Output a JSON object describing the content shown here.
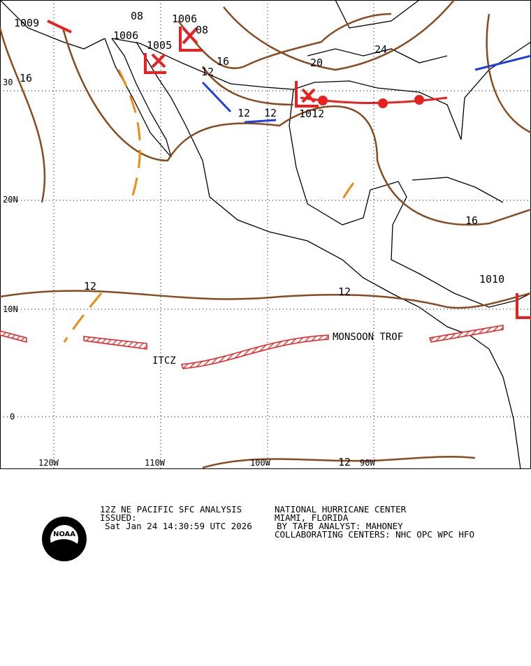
{
  "map": {
    "lat_labels": [
      "30",
      "20N",
      "10N",
      "0"
    ],
    "lon_labels": [
      "120W",
      "110W",
      "100W",
      "90W"
    ],
    "isobar_labels": [
      "1009",
      "08",
      "1006",
      "1006",
      "1005",
      "08",
      "16",
      "12",
      "16",
      "20",
      "24",
      "12",
      "12",
      "1012",
      "16",
      "12",
      "1010",
      "12",
      "12"
    ],
    "features": [
      "MONSOON TROF",
      "ITCZ"
    ]
  },
  "footer": {
    "product": "12Z NE PACIFIC SFC ANALYSIS",
    "issued_label": "ISSUED:",
    "issued": "Sat Jan 24 14:30:59 UTC 2026",
    "center": "NATIONAL HURRICANE CENTER",
    "location": "MIAMI, FLORIDA",
    "analyst": "BY TAFB ANALYST: MAHONEY",
    "collab": "COLLABORATING CENTERS: NHC OPC WPC HFO",
    "logo": "NOAA"
  }
}
